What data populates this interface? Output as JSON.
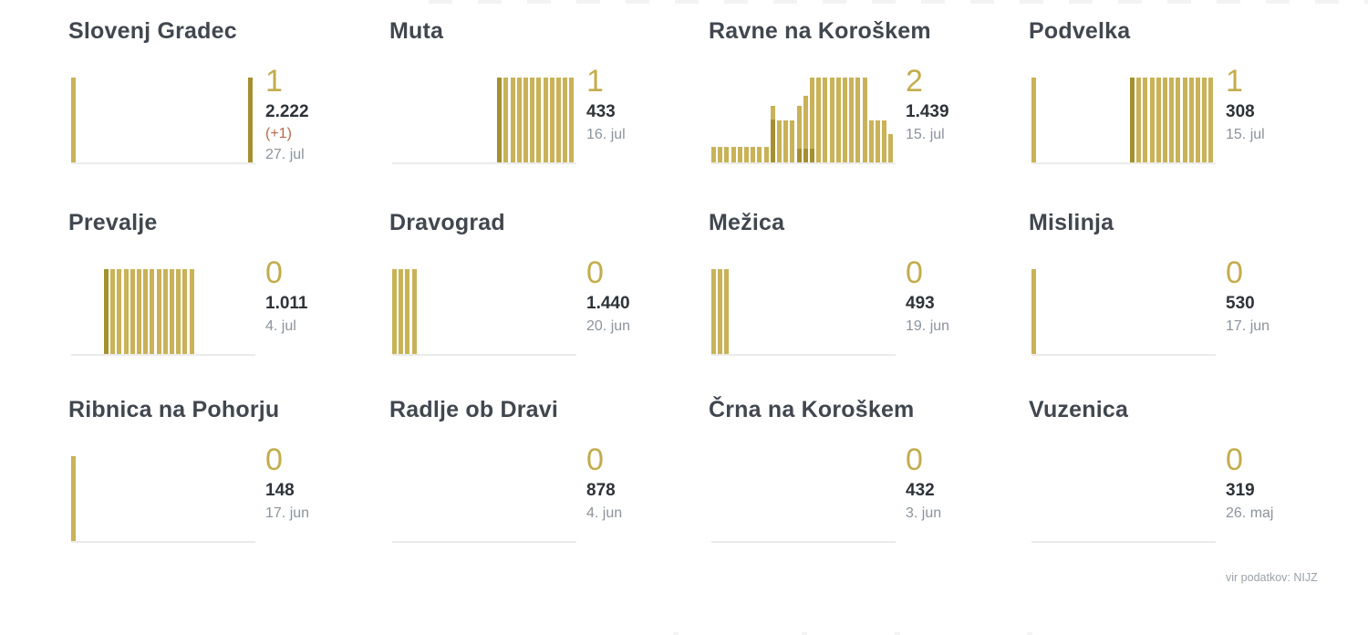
{
  "page": {
    "background": "#ffffff",
    "footer_note": "vir podatkov: NIJZ"
  },
  "colors": {
    "bar_light": "#C9B258",
    "bar_dark": "#A49030",
    "accent_number": "#C3AC4D",
    "title_text": "#41474F",
    "total_text": "#2E3338",
    "delta_text": "#B5694B",
    "date_text": "#8C939B",
    "baseline": "#EBEBEB"
  },
  "bars_format": "[slot(0-27), height_fraction_of_chart, variant L=light D=dark (optional), dark_overlay_height_fraction (optional)]",
  "chart_data": [
    {
      "type": "bar",
      "title": "Slovenj Gradec",
      "latest": "1",
      "total": "2.222",
      "delta": "(+1)",
      "date": "27. jul",
      "n_slots": 28,
      "ylim": [
        0,
        1
      ],
      "bars": [
        [
          0,
          1
        ],
        [
          27,
          1,
          "D"
        ]
      ]
    },
    {
      "type": "bar",
      "title": "Muta",
      "latest": "1",
      "total": "433",
      "date": "16. jul",
      "n_slots": 28,
      "ylim": [
        0,
        1
      ],
      "bars": [
        [
          16,
          1,
          "D"
        ],
        [
          17,
          1
        ],
        [
          18,
          1
        ],
        [
          19,
          1
        ],
        [
          20,
          1
        ],
        [
          21,
          1
        ],
        [
          22,
          1
        ],
        [
          23,
          1
        ],
        [
          24,
          1
        ],
        [
          25,
          1
        ],
        [
          26,
          1
        ],
        [
          27,
          1
        ]
      ]
    },
    {
      "type": "bar",
      "title": "Ravne na Koroškem",
      "latest": "2",
      "total": "1.439",
      "date": "15. jul",
      "n_slots": 28,
      "ylim": [
        0,
        1
      ],
      "bars": [
        [
          0,
          0.18
        ],
        [
          1,
          0.18
        ],
        [
          2,
          0.18
        ],
        [
          3,
          0.18
        ],
        [
          4,
          0.18
        ],
        [
          5,
          0.18
        ],
        [
          6,
          0.18
        ],
        [
          7,
          0.18
        ],
        [
          8,
          0.18
        ],
        [
          9,
          0.67,
          "L",
          0.51
        ],
        [
          10,
          0.49
        ],
        [
          11,
          0.49
        ],
        [
          12,
          0.49
        ],
        [
          13,
          0.67,
          "L",
          0.16
        ],
        [
          14,
          0.78,
          "L",
          0.16
        ],
        [
          15,
          1,
          "L",
          0.16
        ],
        [
          16,
          1
        ],
        [
          17,
          1
        ],
        [
          18,
          1
        ],
        [
          19,
          1
        ],
        [
          20,
          1
        ],
        [
          21,
          1
        ],
        [
          22,
          1
        ],
        [
          23,
          1
        ],
        [
          24,
          0.49
        ],
        [
          25,
          0.49
        ],
        [
          26,
          0.49
        ],
        [
          27,
          0.33
        ]
      ]
    },
    {
      "type": "bar",
      "title": "Podvelka",
      "latest": "1",
      "total": "308",
      "date": "15. jul",
      "n_slots": 28,
      "ylim": [
        0,
        1
      ],
      "bars": [
        [
          0,
          1
        ],
        [
          15,
          1,
          "D"
        ],
        [
          16,
          1
        ],
        [
          17,
          1
        ],
        [
          18,
          1
        ],
        [
          19,
          1
        ],
        [
          20,
          1
        ],
        [
          21,
          1
        ],
        [
          22,
          1
        ],
        [
          23,
          1
        ],
        [
          24,
          1
        ],
        [
          25,
          1
        ],
        [
          26,
          1
        ],
        [
          27,
          1
        ]
      ]
    },
    {
      "type": "bar",
      "title": "Prevalje",
      "latest": "0",
      "total": "1.011",
      "date": "4. jul",
      "n_slots": 28,
      "ylim": [
        0,
        1
      ],
      "bars": [
        [
          5,
          1,
          "D"
        ],
        [
          6,
          1
        ],
        [
          7,
          1
        ],
        [
          8,
          1
        ],
        [
          9,
          1
        ],
        [
          10,
          1
        ],
        [
          11,
          1
        ],
        [
          12,
          1
        ],
        [
          13,
          1
        ],
        [
          14,
          1
        ],
        [
          15,
          1
        ],
        [
          16,
          1
        ],
        [
          17,
          1
        ],
        [
          18,
          1
        ]
      ]
    },
    {
      "type": "bar",
      "title": "Dravograd",
      "latest": "0",
      "total": "1.440",
      "date": "20. jun",
      "n_slots": 28,
      "ylim": [
        0,
        1
      ],
      "bars": [
        [
          0,
          1
        ],
        [
          1,
          1
        ],
        [
          2,
          1
        ],
        [
          3,
          1
        ]
      ]
    },
    {
      "type": "bar",
      "title": "Mežica",
      "latest": "0",
      "total": "493",
      "date": "19. jun",
      "n_slots": 28,
      "ylim": [
        0,
        1
      ],
      "bars": [
        [
          0,
          1
        ],
        [
          1,
          1
        ],
        [
          2,
          1
        ]
      ]
    },
    {
      "type": "bar",
      "title": "Mislinja",
      "latest": "0",
      "total": "530",
      "date": "17. jun",
      "n_slots": 28,
      "ylim": [
        0,
        1
      ],
      "bars": [
        [
          0,
          1
        ]
      ]
    },
    {
      "type": "bar",
      "title": "Ribnica na Pohorju",
      "latest": "0",
      "total": "148",
      "date": "17. jun",
      "n_slots": 28,
      "ylim": [
        0,
        1
      ],
      "bars": [
        [
          0,
          1
        ]
      ]
    },
    {
      "type": "bar",
      "title": "Radlje ob Dravi",
      "latest": "0",
      "total": "878",
      "date": "4. jun",
      "n_slots": 28,
      "ylim": [
        0,
        1
      ],
      "bars": []
    },
    {
      "type": "bar",
      "title": "Črna na Koroškem",
      "latest": "0",
      "total": "432",
      "date": "3. jun",
      "n_slots": 28,
      "ylim": [
        0,
        1
      ],
      "bars": []
    },
    {
      "type": "bar",
      "title": "Vuzenica",
      "latest": "0",
      "total": "319",
      "date": "26. maj",
      "n_slots": 28,
      "ylim": [
        0,
        1
      ],
      "bars": []
    }
  ]
}
